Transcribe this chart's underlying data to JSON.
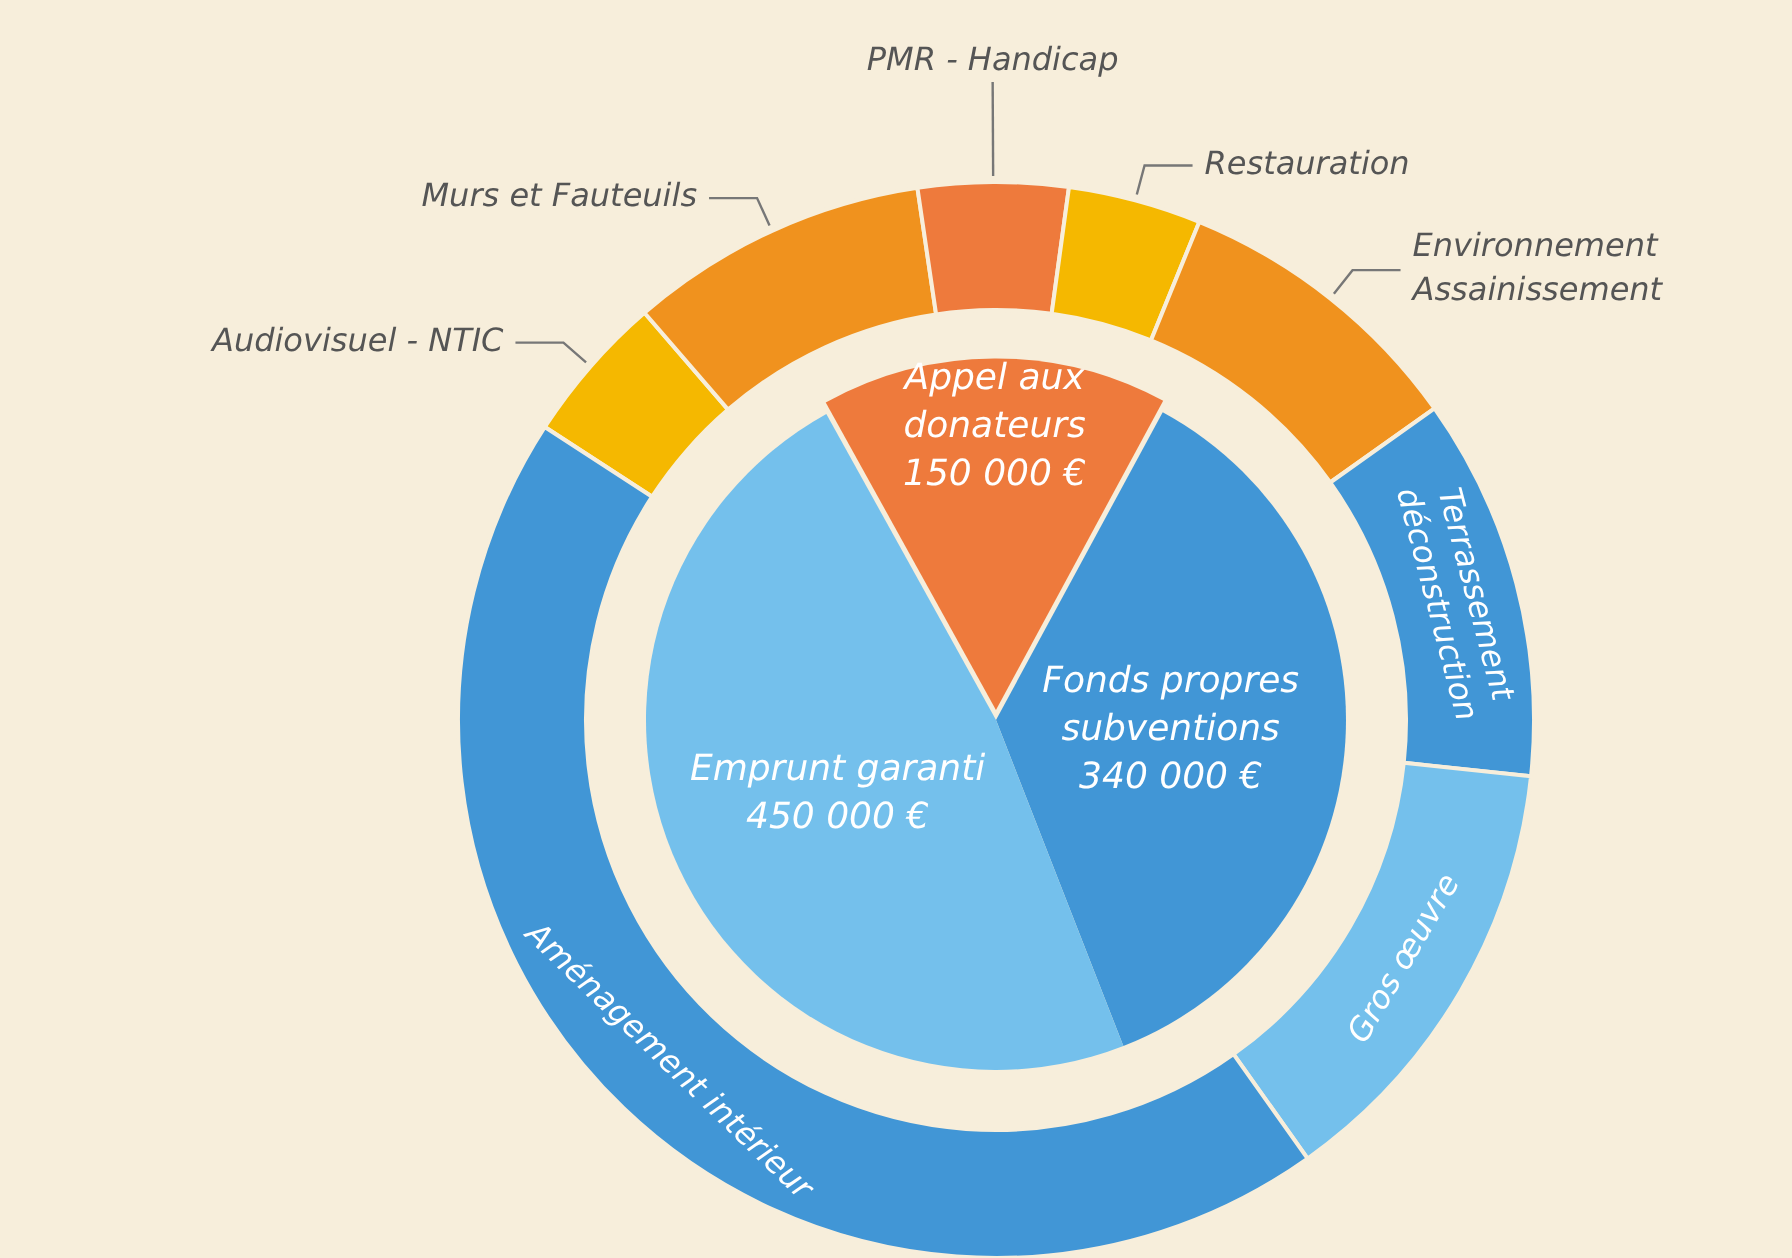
{
  "chart_data": [
    {
      "type": "pie",
      "categories": [
        "Appel aux donateurs",
        "Fonds propres subventions",
        "Emprunt garanti"
      ],
      "values": [
        150000,
        340000,
        450000
      ],
      "colors": [
        "#ee7a3c",
        "#4196d6",
        "#74c0ec"
      ],
      "value_labels": [
        "150 000 €",
        "340 000 €",
        "450 000 €"
      ]
    },
    {
      "type": "donut",
      "categories": [
        "Audiovisuel - NTIC",
        "Murs et Fauteuils",
        "PMR - Handicap",
        "Restauration",
        "Environnement Assainissement",
        "Terrassement déconstruction",
        "Gros œuvre",
        "Aménagement intérieur"
      ],
      "values": [
        4.5,
        9,
        4.5,
        4,
        9,
        11.5,
        13.5,
        44
      ],
      "colors": [
        "#f5b800",
        "#f0921e",
        "#ee7a3c",
        "#f5b800",
        "#f0921e",
        "#4196d6",
        "#74c0ec",
        "#4196d6"
      ]
    }
  ]
}
